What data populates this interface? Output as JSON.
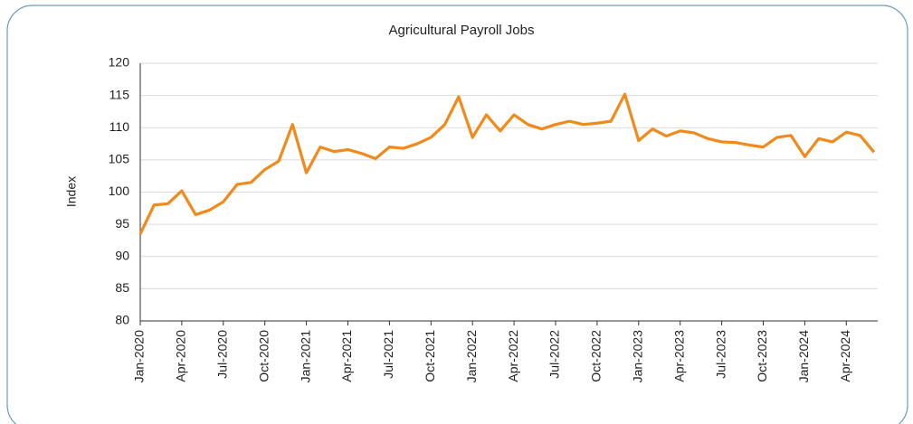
{
  "chart_data": {
    "type": "line",
    "title": "Agricultural Payroll Jobs",
    "y_label": "Index",
    "categories": [
      "Jan-2020",
      null,
      null,
      "Apr-2020",
      null,
      null,
      "Jul-2020",
      null,
      null,
      "Oct-2020",
      null,
      null,
      "Jan-2021",
      null,
      null,
      "Apr-2021",
      null,
      null,
      "Jul-2021",
      null,
      null,
      "Oct-2021",
      null,
      null,
      "Jan-2022",
      null,
      null,
      "Apr-2022",
      null,
      null,
      "Jul-2022",
      null,
      null,
      "Oct-2022",
      null,
      null,
      "Jan-2023",
      null,
      null,
      "Apr-2023",
      null,
      null,
      "Jul-2023",
      null,
      null,
      "Oct-2023",
      null,
      null,
      "Jan-2024",
      null,
      null,
      "Apr-2024",
      null,
      null
    ],
    "series": [
      {
        "name": "Index",
        "color": "#f08a1c",
        "values": [
          93.5,
          98,
          98.2,
          100.2,
          96.5,
          97.2,
          98.5,
          101.2,
          101.5,
          103.5,
          104.8,
          110.5,
          103,
          107,
          106.3,
          106.6,
          106,
          105.2,
          107,
          106.8,
          107.5,
          108.5,
          110.5,
          114.8,
          108.5,
          112,
          109.5,
          112,
          110.5,
          109.8,
          110.5,
          111,
          110.5,
          110.7,
          111,
          115.2,
          108,
          109.8,
          108.7,
          109.5,
          109.2,
          108.3,
          107.8,
          107.7,
          107.3,
          107,
          108.5,
          108.8,
          105.5,
          108.3,
          107.8,
          109.3,
          108.8,
          106.2
        ]
      }
    ],
    "ylim": [
      80,
      120
    ],
    "yticks": [
      80,
      85,
      90,
      95,
      100,
      105,
      110,
      115,
      120
    ],
    "grid": true
  }
}
